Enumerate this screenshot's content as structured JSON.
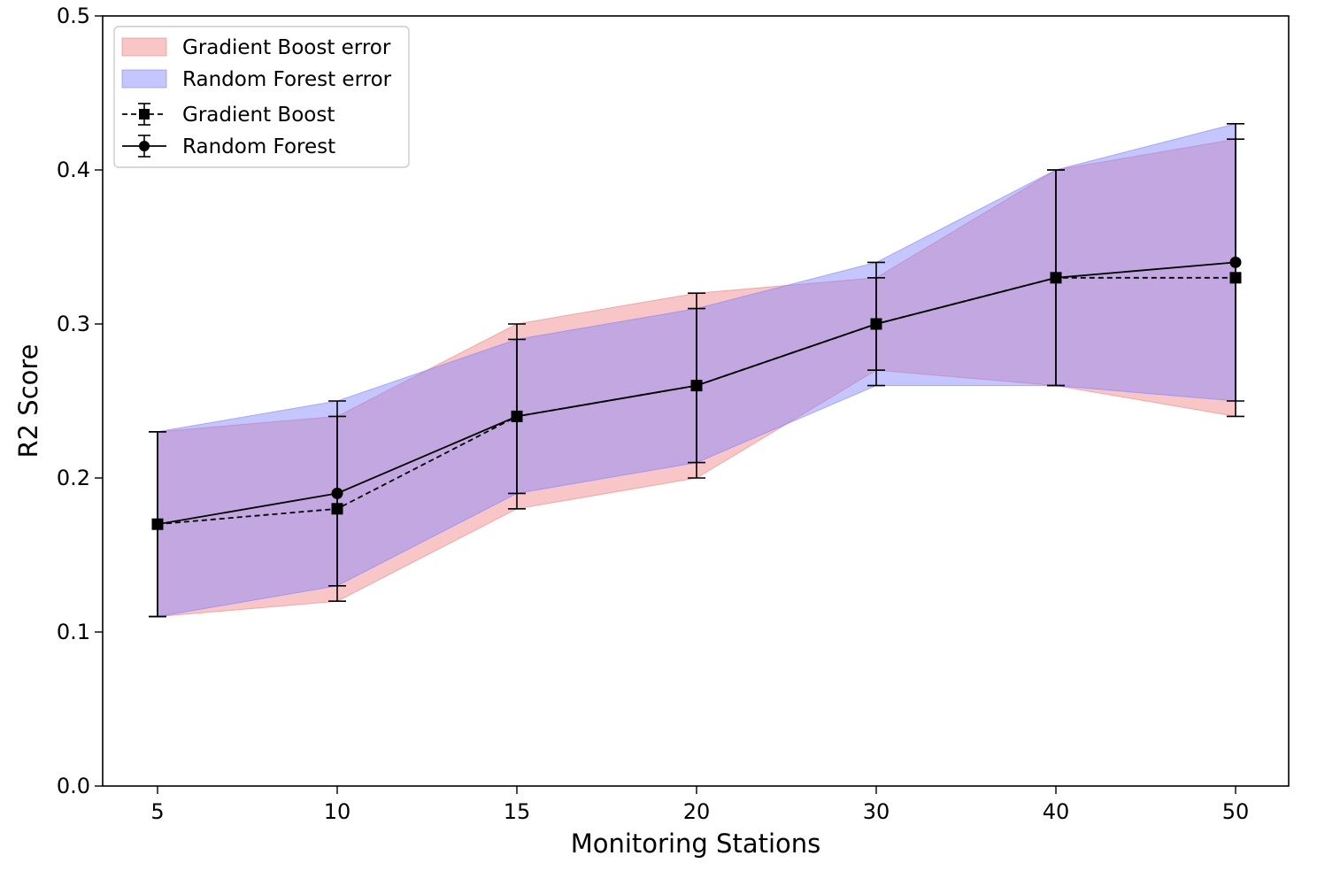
{
  "chart_data": {
    "type": "line",
    "title": "",
    "xlabel": "Monitoring Stations",
    "ylabel": "R2 Score",
    "categories": [
      "5",
      "10",
      "15",
      "20",
      "30",
      "40",
      "50"
    ],
    "ylim": [
      0.0,
      0.5
    ],
    "yticks": [
      "0.0",
      "0.1",
      "0.2",
      "0.3",
      "0.4",
      "0.5"
    ],
    "grid": false,
    "legend_position": "top-left",
    "series": [
      {
        "name": "Gradient Boost",
        "style": "dashed",
        "marker": "square",
        "color": "#000000",
        "values": [
          0.17,
          0.18,
          0.24,
          0.26,
          0.3,
          0.33,
          0.33
        ],
        "lower": [
          0.11,
          0.12,
          0.18,
          0.2,
          0.27,
          0.26,
          0.24
        ],
        "upper": [
          0.23,
          0.24,
          0.3,
          0.32,
          0.33,
          0.4,
          0.42
        ]
      },
      {
        "name": "Random Forest",
        "style": "solid",
        "marker": "circle",
        "color": "#000000",
        "values": [
          0.17,
          0.19,
          0.24,
          0.26,
          0.3,
          0.33,
          0.34
        ],
        "lower": [
          0.11,
          0.13,
          0.19,
          0.21,
          0.26,
          0.26,
          0.25
        ],
        "upper": [
          0.23,
          0.25,
          0.29,
          0.31,
          0.34,
          0.4,
          0.43
        ]
      }
    ],
    "bands": [
      {
        "name": "Gradient Boost error",
        "series": 0,
        "color": "#f08080",
        "opacity": 0.45
      },
      {
        "name": "Random Forest error",
        "series": 1,
        "color": "#8080ff",
        "opacity": 0.45
      }
    ],
    "legend": [
      "Gradient Boost error",
      "Random Forest error",
      "Gradient Boost",
      "Random Forest"
    ]
  }
}
